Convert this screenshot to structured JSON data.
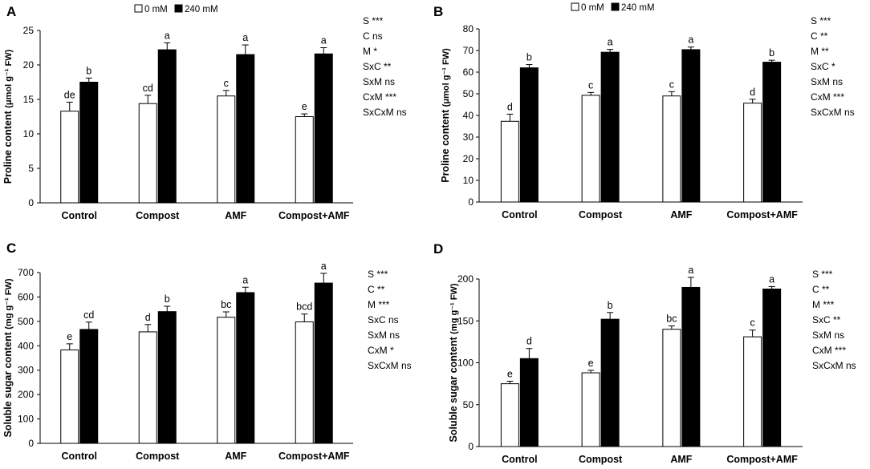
{
  "figure": {
    "legend_items": [
      {
        "label": "0 mM",
        "color": "#ffffff"
      },
      {
        "label": "240 mM",
        "color": "#000000"
      }
    ]
  },
  "chart_data": [
    {
      "panel": "A",
      "type": "bar",
      "categories": [
        "Control",
        "Compost",
        "AMF",
        "Compost+AMF"
      ],
      "ylabel": "Proline content",
      "ylabel_unit": "(μmol g⁻¹ FW)",
      "ylim": [
        0,
        25
      ],
      "yticks": [
        0,
        5,
        10,
        15,
        20,
        25
      ],
      "series": [
        {
          "name": "0 mM",
          "color": "#ffffff",
          "values": [
            13.3,
            14.4,
            15.5,
            12.5
          ],
          "errors": [
            1.3,
            1.2,
            0.8,
            0.4
          ],
          "letters": [
            "de",
            "cd",
            "c",
            "e"
          ]
        },
        {
          "name": "240 mM",
          "color": "#000000",
          "values": [
            17.5,
            22.2,
            21.5,
            21.6
          ],
          "errors": [
            0.6,
            1.0,
            1.4,
            0.9
          ],
          "letters": [
            "b",
            "a",
            "a",
            "a"
          ]
        }
      ],
      "stats": [
        "S ***",
        "C ns",
        "M *",
        "SxC **",
        "SxM ns",
        "CxM ***",
        "SxCxM ns"
      ]
    },
    {
      "panel": "B",
      "type": "bar",
      "categories": [
        "Control",
        "Compost",
        "AMF",
        "Compost+AMF"
      ],
      "ylabel": "Proline content",
      "ylabel_unit": "(μmol g⁻¹ FW)",
      "ylim": [
        0,
        80
      ],
      "yticks": [
        0,
        10,
        20,
        30,
        40,
        50,
        60,
        70,
        80
      ],
      "series": [
        {
          "name": "0 mM",
          "color": "#ffffff",
          "values": [
            37.3,
            49.3,
            49.0,
            45.7
          ],
          "errors": [
            3.3,
            1.3,
            2.0,
            1.8
          ],
          "letters": [
            "d",
            "c",
            "c",
            "d"
          ]
        },
        {
          "name": "240 mM",
          "color": "#000000",
          "values": [
            62.0,
            69.2,
            70.4,
            64.6
          ],
          "errors": [
            1.5,
            1.3,
            1.2,
            0.9
          ],
          "letters": [
            "b",
            "a",
            "a",
            "b"
          ]
        }
      ],
      "stats": [
        "S ***",
        "C **",
        "M **",
        "SxC *",
        "SxM ns",
        "CxM ***",
        "SxCxM ns"
      ]
    },
    {
      "panel": "C",
      "type": "bar",
      "categories": [
        "Control",
        "Compost",
        "AMF",
        "Compost+AMF"
      ],
      "ylabel": "Soluble sugar content",
      "ylabel_unit": "(mg g⁻¹ FW)",
      "ylim": [
        0,
        700
      ],
      "yticks": [
        0,
        100,
        200,
        300,
        400,
        500,
        600,
        700
      ],
      "series": [
        {
          "name": "0 mM",
          "color": "#ffffff",
          "values": [
            383,
            457,
            517,
            498
          ],
          "errors": [
            25,
            30,
            22,
            32
          ],
          "letters": [
            "e",
            "d",
            "bc",
            "bcd"
          ]
        },
        {
          "name": "240 mM",
          "color": "#000000",
          "values": [
            467,
            540,
            618,
            657
          ],
          "errors": [
            30,
            22,
            22,
            40
          ],
          "letters": [
            "cd",
            "b",
            "a",
            "a"
          ]
        }
      ],
      "stats": [
        "S ***",
        "C **",
        "M ***",
        "SxC ns",
        "SxM ns",
        "CxM *",
        "SxCxM ns"
      ]
    },
    {
      "panel": "D",
      "type": "bar",
      "categories": [
        "Control",
        "Compost",
        "AMF",
        "Compost+AMF"
      ],
      "ylabel": "Soluble sugar content",
      "ylabel_unit": "(mg g⁻¹ FW)",
      "ylim": [
        0,
        200
      ],
      "yticks": [
        0,
        50,
        100,
        150,
        200
      ],
      "series": [
        {
          "name": "0 mM",
          "color": "#ffffff",
          "values": [
            75,
            88,
            140,
            131
          ],
          "errors": [
            3,
            3,
            4,
            8
          ],
          "letters": [
            "e",
            "e",
            "bc",
            "c"
          ]
        },
        {
          "name": "240 mM",
          "color": "#000000",
          "values": [
            105,
            152,
            190,
            188
          ],
          "errors": [
            12,
            8,
            12,
            3
          ],
          "letters": [
            "d",
            "b",
            "a",
            "a"
          ]
        }
      ],
      "stats": [
        "S ***",
        "C **",
        "M ***",
        "SxC **",
        "SxM ns",
        "CxM ***",
        "SxCxM ns"
      ]
    }
  ]
}
